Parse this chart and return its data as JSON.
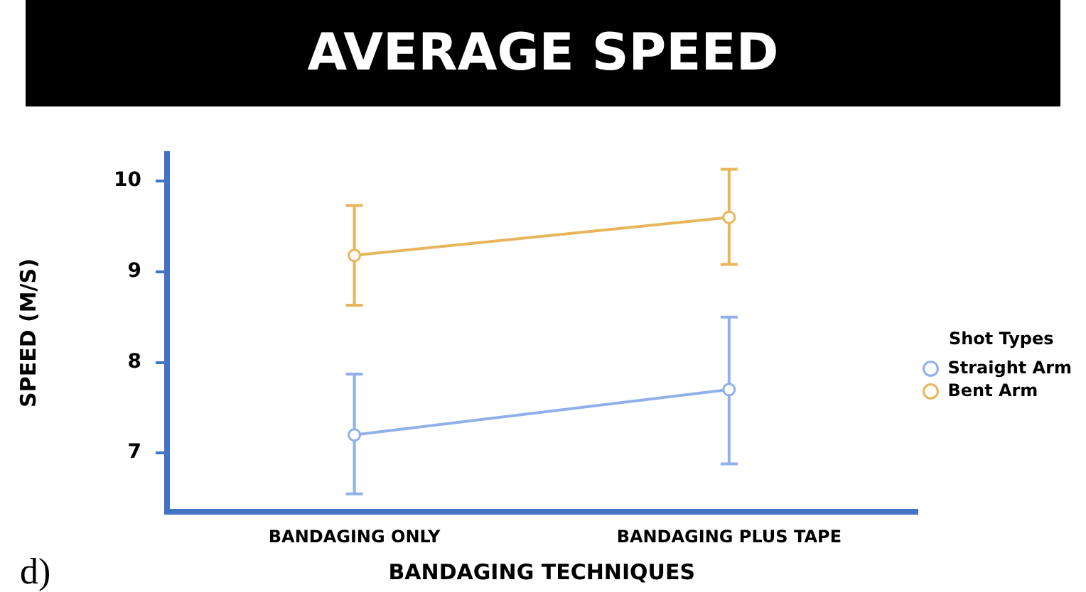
{
  "chart_data": {
    "type": "line",
    "title": "AVERAGE SPEED",
    "xlabel": "BANDAGING TECHNIQUES",
    "ylabel": "SPEED (M/S)",
    "legend_title": "Shot Types",
    "categories": [
      "BANDAGING ONLY",
      "BANDAGING PLUS TAPE"
    ],
    "series": [
      {
        "name": "Straight Arm",
        "color": "#8fb0ea",
        "values": [
          7.2,
          7.7
        ],
        "errors": [
          [
            6.55,
            7.87
          ],
          [
            6.88,
            8.5
          ]
        ]
      },
      {
        "name": "Bent Arm",
        "color": "#e8b55a",
        "values": [
          9.18,
          9.6
        ],
        "errors": [
          [
            8.63,
            9.73
          ],
          [
            9.08,
            10.13
          ]
        ]
      }
    ],
    "ylim": [
      6.35,
      10.3
    ],
    "yticks": [
      7,
      8,
      9,
      10
    ],
    "grid": false,
    "legend": "right",
    "marker": "circle",
    "line_style": "solid",
    "annotations": [
      "d)"
    ]
  }
}
